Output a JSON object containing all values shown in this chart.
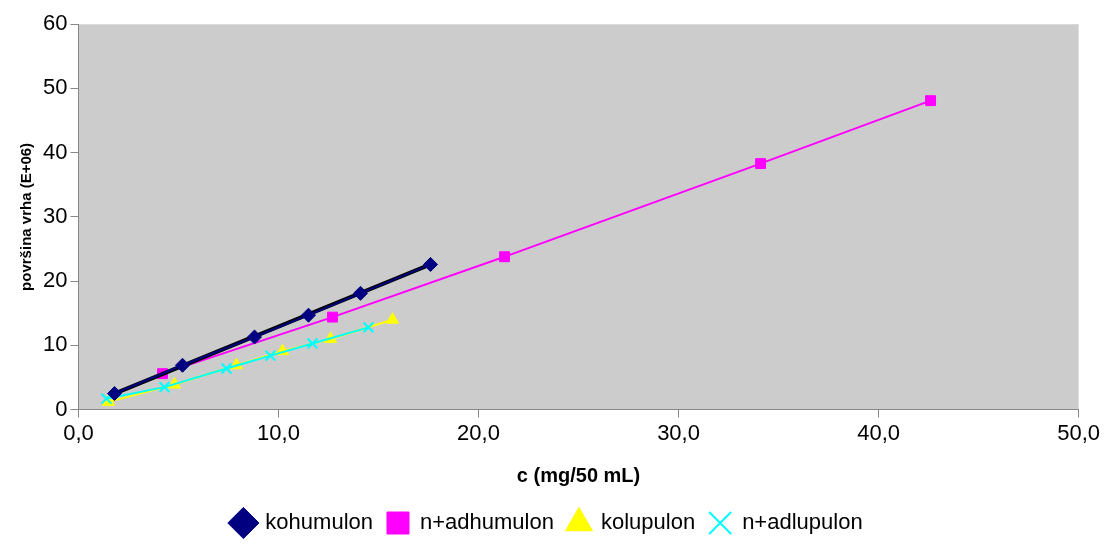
{
  "chart_data": {
    "type": "line",
    "xlabel": "c (mg/50 mL)",
    "ylabel": "površina vrha (E+06)",
    "xlim": [
      0,
      50
    ],
    "xticks": [
      {
        "value": 0,
        "label": "0,0"
      },
      {
        "value": 10,
        "label": "10,0"
      },
      {
        "value": 20,
        "label": "20,0"
      },
      {
        "value": 30,
        "label": "30,0"
      },
      {
        "value": 40,
        "label": "40,0"
      },
      {
        "value": 50,
        "label": "50,0"
      }
    ],
    "ylim": [
      0,
      60
    ],
    "yticks": [
      0,
      10,
      20,
      30,
      40,
      50,
      60
    ],
    "grid": false,
    "legend": "bottom",
    "series": [
      {
        "name": "kohumulon",
        "color": "#000080",
        "marker": "diamond",
        "x": [
          1.8,
          5.2,
          8.8,
          11.5,
          14.1,
          17.6
        ],
        "values": [
          2.5,
          6.9,
          11.3,
          14.7,
          18.1,
          22.6
        ]
      },
      {
        "name": "n+adhumulon",
        "color": "#ff00ff",
        "marker": "square",
        "x": [
          4.2,
          12.7,
          21.3,
          34.1,
          42.6
        ],
        "values": [
          5.6,
          14.4,
          23.8,
          38.3,
          48.1
        ]
      },
      {
        "name": "kolupulon",
        "color": "#ffff00",
        "marker": "triangle",
        "x": [
          1.5,
          4.8,
          7.9,
          10.2,
          12.6,
          15.7
        ],
        "values": [
          1.2,
          3.9,
          6.9,
          9.1,
          11.0,
          14.0
        ]
      },
      {
        "name": "n+adlupulon",
        "color": "#00ffff",
        "marker": "cross",
        "x": [
          1.4,
          4.3,
          7.4,
          9.6,
          11.7,
          14.5
        ],
        "values": [
          1.7,
          3.5,
          6.4,
          8.4,
          10.3,
          12.8
        ]
      },
      {
        "type": "line",
        "color": "#000000",
        "marker": "none",
        "x": [
          1.8,
          17.6
        ],
        "values": [
          2.5,
          22.6
        ]
      }
    ]
  }
}
